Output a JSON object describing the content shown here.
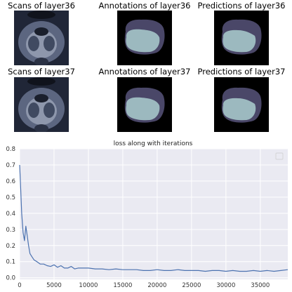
{
  "panels": {
    "row1": {
      "scan_title": "Scans of layer36",
      "annotation_title": "Annotations of layer36",
      "prediction_title": "Predictions of layer36"
    },
    "row2": {
      "scan_title": "Scans of layer37",
      "annotation_title": "Annotations of layer37",
      "prediction_title": "Predictions of layer37"
    },
    "colors": {
      "background": "#000000",
      "outer_region": "#4a4768",
      "inner_region": "#9cb9bf"
    }
  },
  "chart_data": {
    "type": "line",
    "title": "loss along with iterations",
    "xlabel": "",
    "ylabel": "",
    "xlim": [
      0,
      39000
    ],
    "ylim": [
      -0.01,
      0.8
    ],
    "xticks": [
      "0",
      "5000",
      "10000",
      "15000",
      "20000",
      "25000",
      "30000",
      "35000"
    ],
    "yticks": [
      "0.0",
      "0.1",
      "0.2",
      "0.3",
      "0.4",
      "0.5",
      "0.6",
      "0.7",
      "0.8"
    ],
    "grid": true,
    "legend": "top-right (empty)",
    "series_color": "#4c72b0",
    "background_color": "#eaeaf2",
    "series": [
      {
        "x": [
          0,
          150,
          300,
          500,
          700,
          900,
          1100,
          1300,
          1500,
          1800,
          2100,
          2500,
          3000,
          3500,
          4000,
          4500,
          5000,
          5500,
          6000,
          6500,
          7000,
          7500,
          8000,
          8500,
          9000,
          10000,
          11000,
          12000,
          13000,
          14000,
          15000,
          16000,
          17000,
          18000,
          19000,
          20000,
          21000,
          22000,
          23000,
          24000,
          25000,
          26000,
          27000,
          28000,
          29000,
          30000,
          31000,
          32000,
          33000,
          34000,
          35000,
          36000,
          37000,
          38000,
          39000
        ],
        "y": [
          0.7,
          0.55,
          0.4,
          0.28,
          0.23,
          0.32,
          0.26,
          0.2,
          0.15,
          0.13,
          0.11,
          0.1,
          0.085,
          0.085,
          0.075,
          0.07,
          0.08,
          0.065,
          0.075,
          0.06,
          0.06,
          0.07,
          0.055,
          0.06,
          0.06,
          0.06,
          0.055,
          0.055,
          0.05,
          0.055,
          0.05,
          0.05,
          0.05,
          0.045,
          0.045,
          0.05,
          0.045,
          0.045,
          0.05,
          0.045,
          0.045,
          0.045,
          0.04,
          0.045,
          0.045,
          0.04,
          0.045,
          0.04,
          0.04,
          0.045,
          0.04,
          0.045,
          0.04,
          0.045,
          0.05
        ]
      }
    ]
  }
}
